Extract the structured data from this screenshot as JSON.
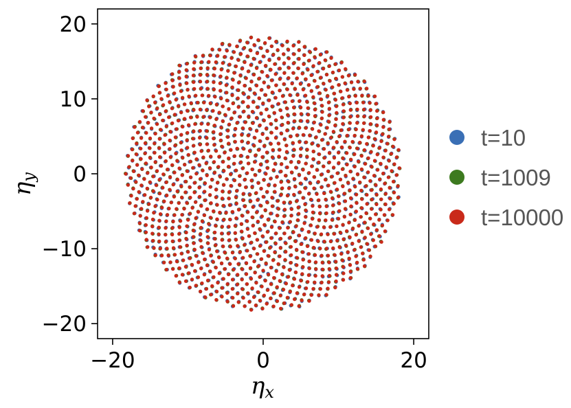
{
  "chart_data": {
    "type": "scatter",
    "title": "",
    "xlabel": "η",
    "xlabel_sub": "x",
    "ylabel": "η",
    "ylabel_sub": "y",
    "xlim": [
      -22,
      22
    ],
    "ylim": [
      -22,
      22
    ],
    "xticks": [
      -20,
      0,
      20
    ],
    "yticks": [
      -20,
      -10,
      0,
      10,
      20
    ],
    "xtick_labels": [
      "−20",
      "0",
      "20"
    ],
    "ytick_labels": [
      "−20",
      "−10",
      "0",
      "10",
      "20"
    ],
    "grid": false,
    "legend_position": "outside-right",
    "disk_radius": 18.3,
    "points_per_series": 1300,
    "series": [
      {
        "name": "t=10",
        "color": "#3a6fb5"
      },
      {
        "name": "t=1009",
        "color": "#3d7a1f"
      },
      {
        "name": "t=10000",
        "color": "#c92a1a"
      }
    ]
  }
}
